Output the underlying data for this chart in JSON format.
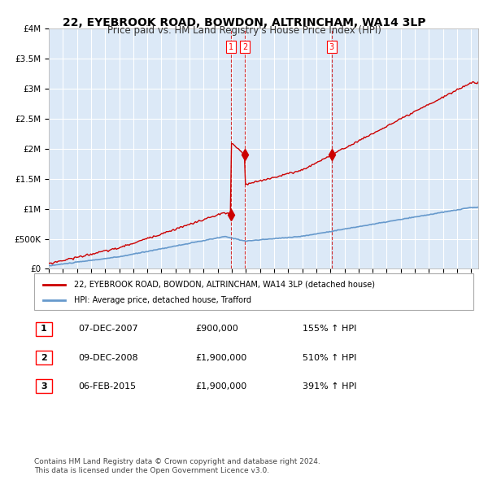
{
  "title": "22, EYEBROOK ROAD, BOWDON, ALTRINCHAM, WA14 3LP",
  "subtitle": "Price paid vs. HM Land Registry's House Price Index (HPI)",
  "bg_color": "#dce9f7",
  "plot_bg_color": "#dce9f7",
  "grid_color": "#ffffff",
  "red_line_color": "#cc0000",
  "blue_line_color": "#6699cc",
  "sale_marker_color": "#cc0000",
  "vline_color": "#cc0000",
  "ylim": [
    0,
    4000000
  ],
  "ytick_labels": [
    "£0",
    "£500K",
    "£1M",
    "£1.5M",
    "£2M",
    "£2.5M",
    "£3M",
    "£3.5M",
    "£4M"
  ],
  "ytick_values": [
    0,
    500000,
    1000000,
    1500000,
    2000000,
    2500000,
    3000000,
    3500000,
    4000000
  ],
  "sale_dates": [
    2007.92,
    2008.92,
    2015.09
  ],
  "sale_prices": [
    900000,
    1900000,
    1900000
  ],
  "sale_labels": [
    "1",
    "2",
    "3"
  ],
  "legend_red": "22, EYEBROOK ROAD, BOWDON, ALTRINCHAM, WA14 3LP (detached house)",
  "legend_blue": "HPI: Average price, detached house, Trafford",
  "table_data": [
    [
      "1",
      "07-DEC-2007",
      "£900,000",
      "155% ↑ HPI"
    ],
    [
      "2",
      "09-DEC-2008",
      "£1,900,000",
      "510% ↑ HPI"
    ],
    [
      "3",
      "06-FEB-2015",
      "£1,900,000",
      "391% ↑ HPI"
    ]
  ],
  "footer": "Contains HM Land Registry data © Crown copyright and database right 2024.\nThis data is licensed under the Open Government Licence v3.0.",
  "xstart": 1995,
  "xend": 2025.5
}
